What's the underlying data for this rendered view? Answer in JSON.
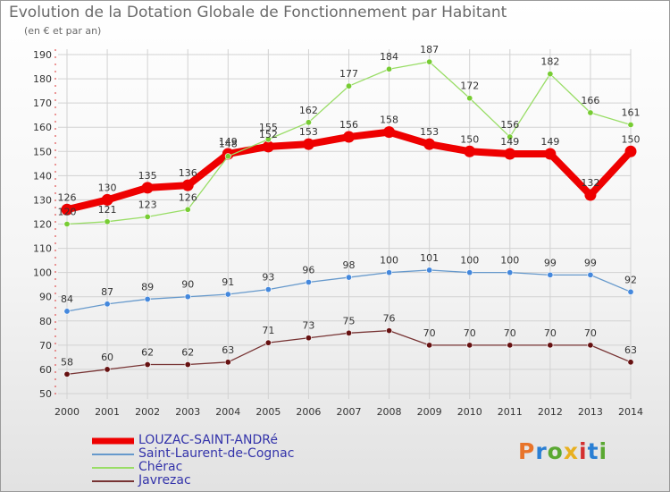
{
  "title": "Evolution de la Dotation Globale de Fonctionnement par Habitant",
  "subtitle": "(en € et par an)",
  "logo": {
    "text": "Proxiti",
    "colors": [
      "#e8742a",
      "#2a7fd4",
      "#5aa832",
      "#e8b020",
      "#d43030",
      "#2a7fd4",
      "#5aa832"
    ]
  },
  "chart_data": {
    "type": "line",
    "title": "Evolution de la Dotation Globale de Fonctionnement par Habitant",
    "subtitle": "(en € et par an)",
    "xlabel": "",
    "ylabel": "",
    "ylim": [
      50,
      190
    ],
    "yticks": [
      50,
      60,
      70,
      80,
      90,
      100,
      110,
      120,
      130,
      140,
      150,
      160,
      170,
      180,
      190
    ],
    "grid": true,
    "legend_position": "bottom-left",
    "x": [
      "2000",
      "2001",
      "2002",
      "2003",
      "2004",
      "2005",
      "2006",
      "2007",
      "2008",
      "2009",
      "2010",
      "2011",
      "2012",
      "2013",
      "2014"
    ],
    "series": [
      {
        "name": "LOUZAC-SAINT-ANDRé",
        "color": "#ee0000",
        "marker": "#ee0000",
        "values": [
          126,
          130,
          135,
          136,
          149,
          152,
          153,
          156,
          158,
          153,
          150,
          149,
          149,
          132,
          150
        ]
      },
      {
        "name": "Saint-Laurent-de-Cognac",
        "color": "#6699cc",
        "marker": "#4488dd",
        "values": [
          84,
          87,
          89,
          90,
          91,
          93,
          96,
          98,
          100,
          101,
          100,
          100,
          99,
          99,
          92
        ]
      },
      {
        "name": "Chérac",
        "color": "#99dd66",
        "marker": "#77cc33",
        "values": [
          120,
          121,
          123,
          126,
          148,
          155,
          162,
          177,
          184,
          187,
          172,
          156,
          182,
          166,
          161
        ]
      },
      {
        "name": "Javrezac",
        "color": "#773333",
        "marker": "#661111",
        "values": [
          58,
          60,
          62,
          62,
          63,
          71,
          73,
          75,
          76,
          70,
          70,
          70,
          70,
          70,
          63
        ]
      }
    ]
  }
}
